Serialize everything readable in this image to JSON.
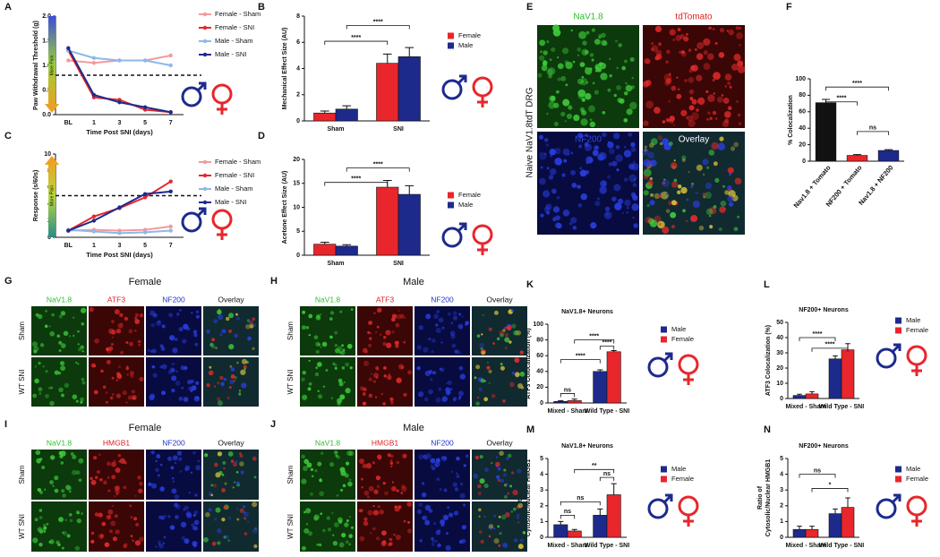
{
  "chart_data": [
    {
      "panel": "A",
      "type": "line",
      "x_label": "Time Post SNI (days)",
      "y_label": "Paw Withdrawal Threshold (g)",
      "categories": [
        "BL",
        "1",
        "3",
        "5",
        "7"
      ],
      "ylim": [
        0,
        2
      ],
      "yticks": [
        {
          "value": 0,
          "label": "0.0"
        },
        0.5,
        {
          "value": 1,
          "label": "1.0"
        },
        1.5,
        {
          "value": 2,
          "label": "2.0"
        }
      ],
      "reference_line": 0.8,
      "annotation": "More Pain",
      "series": [
        {
          "name": "Female - Sham",
          "color": "#f29b9b",
          "values": [
            1.1,
            1.05,
            1.1,
            1.1,
            1.2
          ]
        },
        {
          "name": "Female - SNI",
          "color": "#e8262b",
          "values": [
            1.3,
            0.35,
            0.3,
            0.1,
            0.05
          ]
        },
        {
          "name": "Male - Sham",
          "color": "#8fb8e8",
          "values": [
            1.3,
            1.15,
            1.1,
            1.1,
            1.0
          ]
        },
        {
          "name": "Male - SNI",
          "color": "#1d2a8c",
          "values": [
            1.35,
            0.4,
            0.25,
            0.15,
            0.05
          ]
        }
      ]
    },
    {
      "panel": "B",
      "type": "bar",
      "y_label": "Mechanical Effect Size (AU)",
      "categories": [
        "Sham",
        "SNI"
      ],
      "ylim": [
        0,
        8
      ],
      "yticks": [
        0,
        2,
        4,
        6,
        8
      ],
      "annotations": [
        "****",
        "****"
      ],
      "series": [
        {
          "name": "Female",
          "color": "#e8262b",
          "values": [
            0.6,
            4.4
          ],
          "errors": [
            0.15,
            0.7
          ]
        },
        {
          "name": "Male",
          "color": "#1d2a8c",
          "values": [
            0.9,
            4.9
          ],
          "errors": [
            0.25,
            0.7
          ]
        }
      ]
    },
    {
      "panel": "C",
      "type": "line",
      "x_label": "Time Post SNI (days)",
      "y_label": "Response (s/60s)",
      "categories": [
        "BL",
        "1",
        "3",
        "5",
        "7"
      ],
      "ylim": [
        0,
        10
      ],
      "yticks": [
        0,
        2,
        4,
        6,
        8,
        10
      ],
      "reference_line": 5,
      "annotation": "More Pain",
      "series": [
        {
          "name": "Female - Sham",
          "color": "#f29b9b",
          "values": [
            0.8,
            0.9,
            0.8,
            0.9,
            1.3
          ]
        },
        {
          "name": "Female - SNI",
          "color": "#e8262b",
          "values": [
            0.8,
            2.5,
            3.5,
            4.8,
            6.7
          ]
        },
        {
          "name": "Male - Sham",
          "color": "#8fb8e8",
          "values": [
            0.9,
            0.7,
            0.5,
            0.6,
            0.8
          ]
        },
        {
          "name": "Male - SNI",
          "color": "#1d2a8c",
          "values": [
            0.8,
            2.0,
            3.6,
            5.2,
            5.5
          ]
        }
      ]
    },
    {
      "panel": "D",
      "type": "bar",
      "y_label": "Acetone Effect Size (AU)",
      "categories": [
        "Sham",
        "SNI"
      ],
      "ylim": [
        0,
        20
      ],
      "yticks": [
        0,
        5,
        10,
        15,
        20
      ],
      "annotations": [
        "****",
        "****"
      ],
      "series": [
        {
          "name": "Female",
          "color": "#e8262b",
          "values": [
            2.3,
            14.2
          ],
          "errors": [
            0.4,
            1.4
          ]
        },
        {
          "name": "Male",
          "color": "#1d2a8c",
          "values": [
            1.9,
            12.7
          ],
          "errors": [
            0.3,
            1.8
          ]
        }
      ]
    },
    {
      "panel": "F",
      "type": "bar",
      "y_label": "% Colocalization",
      "categories": [
        "Nav1.8 + Tomato",
        "NF200 + Tomato",
        "Nav1.8 + NF200"
      ],
      "values": [
        71,
        7,
        13
      ],
      "errors": [
        4,
        1,
        1
      ],
      "colors": [
        "#111111",
        "#e8262b",
        "#1d2a8c"
      ],
      "ylim": [
        0,
        100
      ],
      "yticks": [
        0,
        20,
        40,
        60,
        80,
        100
      ],
      "annotations": [
        "****",
        "****",
        "ns"
      ]
    },
    {
      "panel": "K",
      "type": "bar",
      "title": "NaV1.8+ Neurons",
      "y_label": "ATF3 Colocalization (%)",
      "categories": [
        "Mixed - Sham",
        "Wild Type - SNI"
      ],
      "ylim": [
        0,
        100
      ],
      "yticks": [
        0,
        20,
        40,
        60,
        80,
        100
      ],
      "annotations": [
        "ns",
        "****",
        "****",
        "****"
      ],
      "series": [
        {
          "name": "Male",
          "color": "#1d2a8c",
          "values": [
            2,
            40
          ],
          "errors": [
            1,
            2
          ]
        },
        {
          "name": "Female",
          "color": "#e8262b",
          "values": [
            3,
            65
          ],
          "errors": [
            2,
            1.5
          ]
        }
      ]
    },
    {
      "panel": "L",
      "type": "bar",
      "title": "NF200+ Neurons",
      "y_label": "ATF3 Colocalization (%)",
      "categories": [
        "Mixed - Sham",
        "Wild Type - SNI"
      ],
      "ylim": [
        0,
        50
      ],
      "yticks": [
        0,
        10,
        20,
        30,
        40,
        50
      ],
      "annotations": [
        "****",
        "****"
      ],
      "series": [
        {
          "name": "Male",
          "color": "#1d2a8c",
          "values": [
            2,
            26
          ],
          "errors": [
            0.8,
            2
          ]
        },
        {
          "name": "Female",
          "color": "#e8262b",
          "values": [
            3,
            32
          ],
          "errors": [
            1.5,
            4
          ]
        }
      ]
    },
    {
      "panel": "M",
      "type": "bar",
      "title": "NaV1.8+ Neurons",
      "y_label": [
        "Ratio of",
        "Cytosolic/Nuclear HMGB1"
      ],
      "categories": [
        "Mixed - Sham",
        "Wild Type - SNI"
      ],
      "ylim": [
        0,
        5
      ],
      "yticks": [
        0,
        1,
        2,
        3,
        4,
        5
      ],
      "annotations": [
        "ns",
        "ns",
        "**",
        "ns"
      ],
      "series": [
        {
          "name": "Male",
          "color": "#1d2a8c",
          "values": [
            0.8,
            1.4
          ],
          "errors": [
            0.2,
            0.4
          ]
        },
        {
          "name": "Female",
          "color": "#e8262b",
          "values": [
            0.4,
            2.7
          ],
          "errors": [
            0.1,
            0.7
          ]
        }
      ]
    },
    {
      "panel": "N",
      "type": "bar",
      "title": "NF200+ Neurons",
      "y_label": [
        "Ratio of",
        "Cytosolic/Nuclear HMGB1"
      ],
      "categories": [
        "Mixed - Sham",
        "Wild Type - SNI"
      ],
      "ylim": [
        0,
        5
      ],
      "yticks": [
        0,
        1,
        2,
        3,
        4,
        5
      ],
      "annotations": [
        "ns",
        "*"
      ],
      "series": [
        {
          "name": "Male",
          "color": "#1d2a8c",
          "values": [
            0.5,
            1.5
          ],
          "errors": [
            0.2,
            0.3
          ]
        },
        {
          "name": "Female",
          "color": "#e8262b",
          "values": [
            0.5,
            1.9
          ],
          "errors": [
            0.2,
            0.6
          ]
        }
      ]
    }
  ],
  "images": [
    {
      "panel": "E",
      "side_label": "Naive NaV1.8tdT DRG",
      "columns": [
        "NaV1.8",
        "tdTomato",
        "NF200",
        "Overlay"
      ]
    },
    {
      "panel": "G",
      "title": "Female",
      "columns": [
        "NaV1.8",
        "ATF3",
        "NF200",
        "Overlay"
      ],
      "rows": [
        "Sham",
        "WT SNI"
      ]
    },
    {
      "panel": "H",
      "title": "Male",
      "columns": [
        "NaV1.8",
        "ATF3",
        "NF200",
        "Overlay"
      ],
      "rows": [
        "Sham",
        "WT SNI"
      ]
    },
    {
      "panel": "I",
      "title": "Female",
      "columns": [
        "NaV1.8",
        "HMGB1",
        "NF200",
        "Overlay"
      ],
      "rows": [
        "Sham",
        "WT SNI"
      ]
    },
    {
      "panel": "J",
      "title": "Male",
      "columns": [
        "NaV1.8",
        "HMGB1",
        "NF200",
        "Overlay"
      ],
      "rows": [
        "Sham",
        "WT SNI"
      ]
    }
  ]
}
